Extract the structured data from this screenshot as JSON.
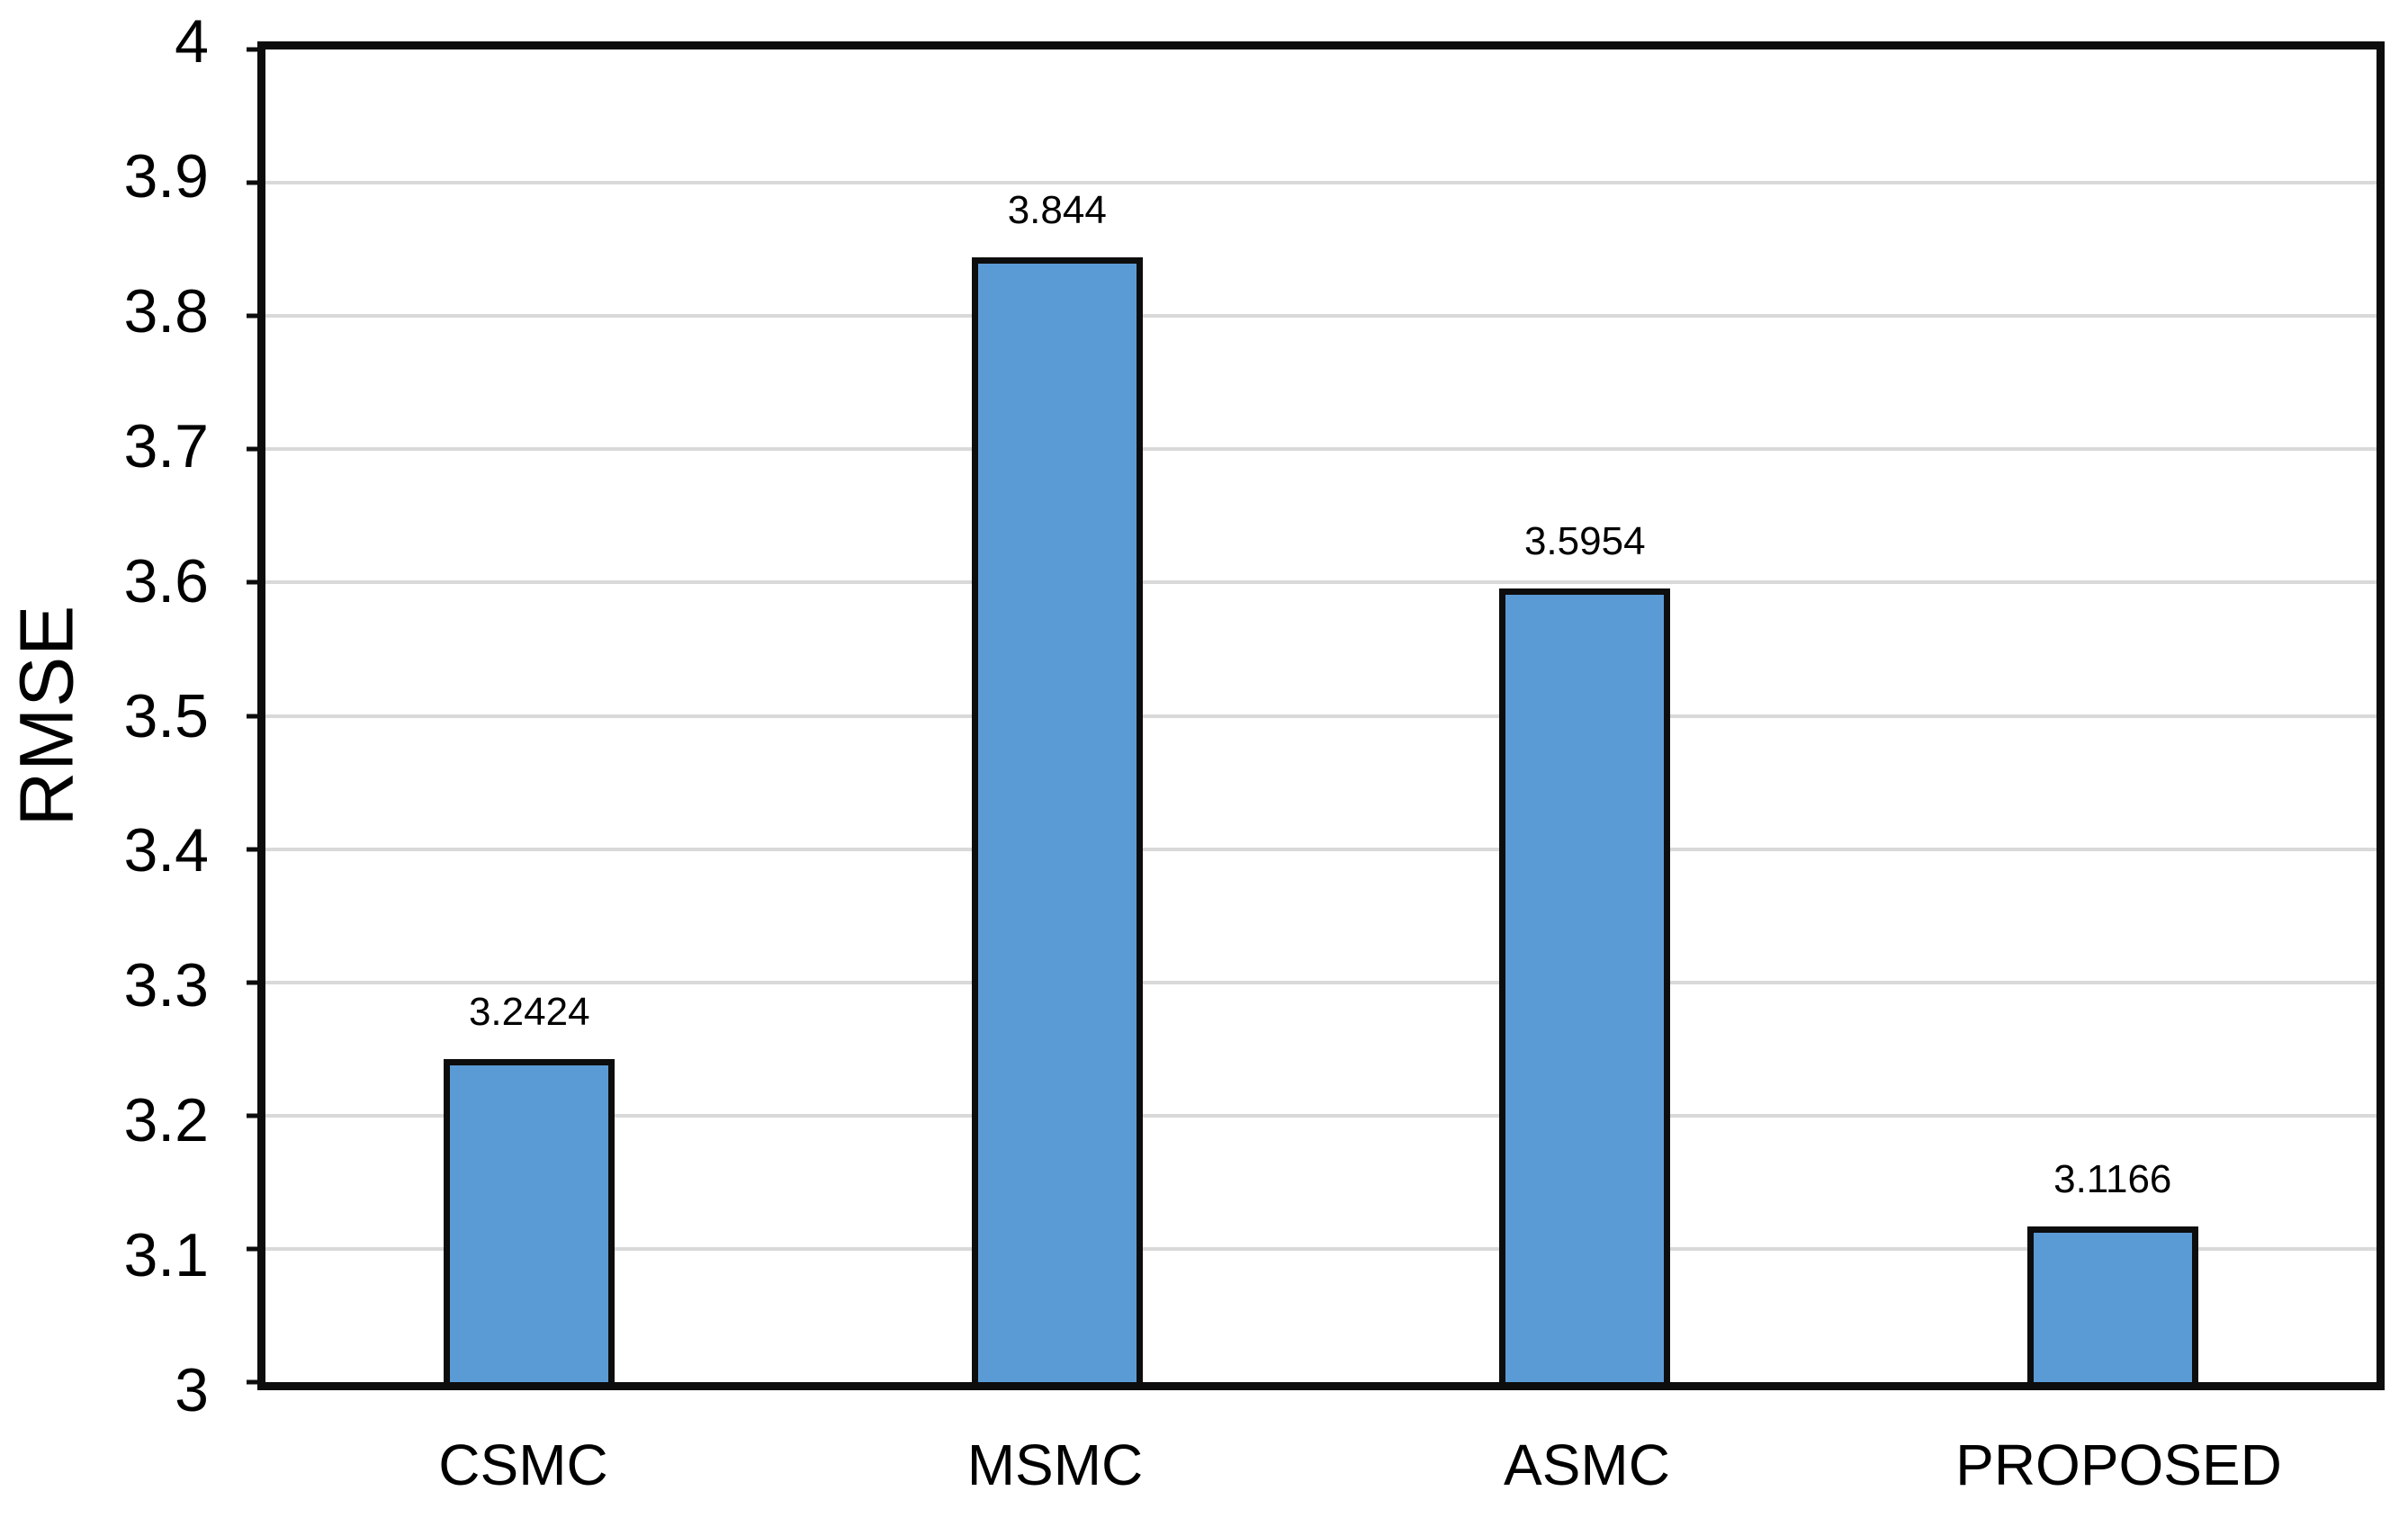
{
  "chart_data": {
    "type": "bar",
    "title": "",
    "xlabel": "",
    "ylabel": "RMSE",
    "categories": [
      "CSMC",
      "MSMC",
      "ASMC",
      "PROPOSED"
    ],
    "values": [
      3.2424,
      3.844,
      3.5954,
      3.1166
    ],
    "data_labels": [
      "3.2424",
      "3.844",
      "3.5954",
      "3.1166"
    ],
    "ylim": [
      3,
      4
    ],
    "ytick_interval": 0.1,
    "ytick_labels": [
      "4",
      "3.9",
      "3.8",
      "3.7",
      "3.6",
      "3.5",
      "3.4",
      "3.3",
      "3.2",
      "3.1",
      "3"
    ],
    "grid": "horizontal",
    "legend_position": "none",
    "colors": {
      "bar_fill": "#5B9BD5",
      "bar_border": "#0D0D0D",
      "axis_border": "#0D0D0D",
      "gridline": "#D9D9D9",
      "text": "#000000",
      "background": "#FFFFFF"
    }
  }
}
